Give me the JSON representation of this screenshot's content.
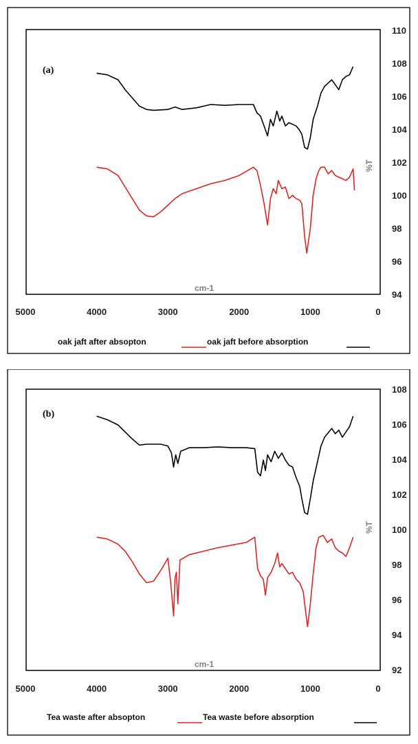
{
  "chart_data": [
    {
      "type": "line",
      "panel_label": "(a)",
      "xlabel": "cm-1",
      "ylabel": "%T",
      "xlim": [
        5000,
        0
      ],
      "ylim": [
        94,
        110
      ],
      "x_ticks": [
        "5000",
        "4000",
        "3000",
        "2000",
        "1000",
        "0"
      ],
      "y_ticks": [
        "110",
        "108",
        "106",
        "104",
        "102",
        "100",
        "98",
        "96",
        "94"
      ],
      "legend": {
        "after_label": "oak jaft after absopton",
        "before_label": "oak jaft before absorption",
        "after_color": "#d62728",
        "before_color": "#000000"
      },
      "series": [
        {
          "role": "before",
          "color": "#000000",
          "points": [
            [
              4000,
              107.4
            ],
            [
              3850,
              107.3
            ],
            [
              3700,
              107.0
            ],
            [
              3600,
              106.4
            ],
            [
              3500,
              105.9
            ],
            [
              3400,
              105.4
            ],
            [
              3300,
              105.2
            ],
            [
              3200,
              105.15
            ],
            [
              3000,
              105.2
            ],
            [
              2900,
              105.35
            ],
            [
              2800,
              105.2
            ],
            [
              2600,
              105.3
            ],
            [
              2400,
              105.5
            ],
            [
              2200,
              105.45
            ],
            [
              2000,
              105.5
            ],
            [
              1800,
              105.5
            ],
            [
              1750,
              105.0
            ],
            [
              1700,
              104.8
            ],
            [
              1650,
              104.2
            ],
            [
              1600,
              103.6
            ],
            [
              1560,
              104.6
            ],
            [
              1520,
              104.2
            ],
            [
              1470,
              105.1
            ],
            [
              1430,
              104.5
            ],
            [
              1400,
              104.8
            ],
            [
              1350,
              104.2
            ],
            [
              1300,
              104.4
            ],
            [
              1250,
              104.3
            ],
            [
              1200,
              104.2
            ],
            [
              1160,
              104.0
            ],
            [
              1120,
              103.7
            ],
            [
              1080,
              102.9
            ],
            [
              1040,
              102.8
            ],
            [
              1000,
              103.5
            ],
            [
              960,
              104.6
            ],
            [
              900,
              105.4
            ],
            [
              850,
              106.2
            ],
            [
              800,
              106.6
            ],
            [
              750,
              106.8
            ],
            [
              700,
              107.0
            ],
            [
              650,
              106.7
            ],
            [
              600,
              106.4
            ],
            [
              550,
              107.0
            ],
            [
              500,
              107.2
            ],
            [
              450,
              107.3
            ],
            [
              400,
              107.8
            ]
          ]
        },
        {
          "role": "after",
          "color": "#d62728",
          "points": [
            [
              4000,
              101.7
            ],
            [
              3850,
              101.6
            ],
            [
              3700,
              101.2
            ],
            [
              3600,
              100.5
            ],
            [
              3500,
              99.8
            ],
            [
              3400,
              99.1
            ],
            [
              3300,
              98.75
            ],
            [
              3200,
              98.7
            ],
            [
              3100,
              99.0
            ],
            [
              3000,
              99.4
            ],
            [
              2900,
              99.8
            ],
            [
              2800,
              100.1
            ],
            [
              2600,
              100.4
            ],
            [
              2400,
              100.7
            ],
            [
              2200,
              100.9
            ],
            [
              2000,
              101.2
            ],
            [
              1800,
              101.7
            ],
            [
              1750,
              101.5
            ],
            [
              1700,
              100.6
            ],
            [
              1650,
              99.5
            ],
            [
              1600,
              98.2
            ],
            [
              1560,
              99.8
            ],
            [
              1520,
              100.4
            ],
            [
              1480,
              100.1
            ],
            [
              1450,
              100.9
            ],
            [
              1400,
              100.4
            ],
            [
              1350,
              100.5
            ],
            [
              1300,
              99.8
            ],
            [
              1250,
              100.0
            ],
            [
              1200,
              99.8
            ],
            [
              1150,
              99.7
            ],
            [
              1120,
              99.5
            ],
            [
              1080,
              97.5
            ],
            [
              1050,
              96.5
            ],
            [
              1000,
              98.0
            ],
            [
              960,
              100.0
            ],
            [
              920,
              101.0
            ],
            [
              880,
              101.5
            ],
            [
              850,
              101.7
            ],
            [
              800,
              101.7
            ],
            [
              750,
              101.3
            ],
            [
              700,
              101.5
            ],
            [
              650,
              101.2
            ],
            [
              600,
              101.1
            ],
            [
              500,
              100.9
            ],
            [
              450,
              101.1
            ],
            [
              400,
              101.6
            ],
            [
              380,
              100.3
            ]
          ]
        }
      ]
    },
    {
      "type": "line",
      "panel_label": "(b)",
      "xlabel": "cm-1",
      "ylabel": "%T",
      "xlim": [
        5000,
        0
      ],
      "ylim": [
        92,
        108
      ],
      "x_ticks": [
        "5000",
        "4000",
        "3000",
        "2000",
        "1000",
        "0"
      ],
      "y_ticks": [
        "108",
        "106",
        "104",
        "102",
        "100",
        "98",
        "96",
        "94",
        "92"
      ],
      "legend": {
        "after_label": "Tea waste after absopton",
        "before_label": "Tea waste before absorption",
        "after_color": "#d62728",
        "before_color": "#000000"
      },
      "series": [
        {
          "role": "before",
          "color": "#000000",
          "points": [
            [
              4000,
              106.5
            ],
            [
              3850,
              106.3
            ],
            [
              3700,
              106.0
            ],
            [
              3600,
              105.6
            ],
            [
              3500,
              105.2
            ],
            [
              3400,
              104.85
            ],
            [
              3300,
              104.9
            ],
            [
              3100,
              104.9
            ],
            [
              3000,
              104.8
            ],
            [
              2950,
              104.4
            ],
            [
              2920,
              103.6
            ],
            [
              2890,
              104.3
            ],
            [
              2860,
              103.8
            ],
            [
              2820,
              104.5
            ],
            [
              2700,
              104.7
            ],
            [
              2500,
              104.7
            ],
            [
              2300,
              104.75
            ],
            [
              2100,
              104.7
            ],
            [
              1900,
              104.7
            ],
            [
              1780,
              104.65
            ],
            [
              1740,
              103.3
            ],
            [
              1700,
              103.1
            ],
            [
              1660,
              104.0
            ],
            [
              1630,
              103.4
            ],
            [
              1600,
              104.3
            ],
            [
              1550,
              103.9
            ],
            [
              1500,
              104.5
            ],
            [
              1450,
              104.1
            ],
            [
              1400,
              104.4
            ],
            [
              1350,
              104.0
            ],
            [
              1300,
              103.7
            ],
            [
              1250,
              103.6
            ],
            [
              1200,
              103.0
            ],
            [
              1150,
              102.5
            ],
            [
              1120,
              101.8
            ],
            [
              1080,
              101.0
            ],
            [
              1040,
              100.9
            ],
            [
              1000,
              101.8
            ],
            [
              960,
              102.8
            ],
            [
              900,
              103.9
            ],
            [
              850,
              104.8
            ],
            [
              800,
              105.3
            ],
            [
              700,
              105.8
            ],
            [
              650,
              105.5
            ],
            [
              600,
              105.7
            ],
            [
              550,
              105.3
            ],
            [
              500,
              105.6
            ],
            [
              450,
              105.9
            ],
            [
              400,
              106.5
            ]
          ]
        },
        {
          "role": "after",
          "color": "#d62728",
          "points": [
            [
              4000,
              99.6
            ],
            [
              3850,
              99.5
            ],
            [
              3700,
              99.2
            ],
            [
              3600,
              98.8
            ],
            [
              3500,
              98.2
            ],
            [
              3400,
              97.5
            ],
            [
              3300,
              97.0
            ],
            [
              3200,
              97.1
            ],
            [
              3100,
              97.7
            ],
            [
              3000,
              98.4
            ],
            [
              2960,
              97.0
            ],
            [
              2920,
              95.1
            ],
            [
              2900,
              97.3
            ],
            [
              2880,
              97.6
            ],
            [
              2860,
              95.8
            ],
            [
              2830,
              98.3
            ],
            [
              2700,
              98.6
            ],
            [
              2500,
              98.8
            ],
            [
              2300,
              99.0
            ],
            [
              2100,
              99.15
            ],
            [
              1900,
              99.3
            ],
            [
              1780,
              99.6
            ],
            [
              1740,
              97.8
            ],
            [
              1700,
              97.4
            ],
            [
              1660,
              97.2
            ],
            [
              1630,
              96.3
            ],
            [
              1600,
              97.3
            ],
            [
              1550,
              97.6
            ],
            [
              1500,
              98.1
            ],
            [
              1460,
              98.7
            ],
            [
              1430,
              97.9
            ],
            [
              1400,
              98.1
            ],
            [
              1350,
              97.8
            ],
            [
              1300,
              97.5
            ],
            [
              1250,
              97.6
            ],
            [
              1200,
              97.2
            ],
            [
              1150,
              97.0
            ],
            [
              1100,
              96.5
            ],
            [
              1070,
              95.5
            ],
            [
              1040,
              94.5
            ],
            [
              1000,
              95.8
            ],
            [
              960,
              97.5
            ],
            [
              920,
              99.0
            ],
            [
              880,
              99.6
            ],
            [
              820,
              99.7
            ],
            [
              760,
              99.3
            ],
            [
              700,
              99.5
            ],
            [
              650,
              99.0
            ],
            [
              600,
              98.8
            ],
            [
              550,
              98.7
            ],
            [
              500,
              98.5
            ],
            [
              450,
              99.0
            ],
            [
              400,
              99.6
            ]
          ]
        }
      ]
    }
  ]
}
